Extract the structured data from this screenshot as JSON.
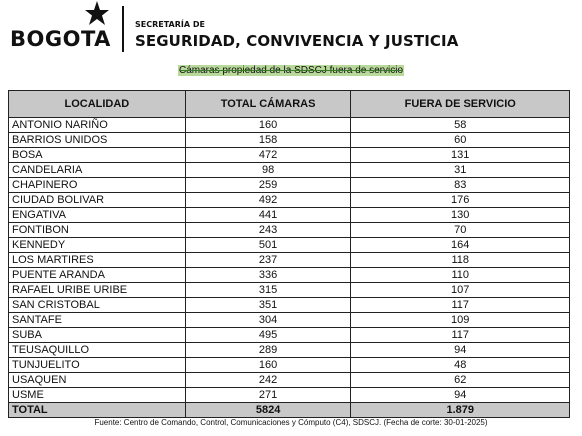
{
  "header": {
    "logo_text": "BOGOTA",
    "secretaria": "SECRETARÍA DE",
    "department": "SEGURIDAD, CONVIVENCIA Y JUSTICIA"
  },
  "subtitle": "Cámaras propiedad de la SDSCJ fuera de servicio",
  "table": {
    "headers": [
      "LOCALIDAD",
      "TOTAL CÁMARAS",
      "FUERA DE SERVICIO"
    ],
    "rows": [
      [
        "ANTONIO NARIÑO",
        "160",
        "58"
      ],
      [
        "BARRIOS UNIDOS",
        "158",
        "60"
      ],
      [
        "BOSA",
        "472",
        "131"
      ],
      [
        "CANDELARIA",
        "98",
        "31"
      ],
      [
        "CHAPINERO",
        "259",
        "83"
      ],
      [
        "CIUDAD BOLIVAR",
        "492",
        "176"
      ],
      [
        "ENGATIVA",
        "441",
        "130"
      ],
      [
        "FONTIBON",
        "243",
        "70"
      ],
      [
        "KENNEDY",
        "501",
        "164"
      ],
      [
        "LOS MARTIRES",
        "237",
        "118"
      ],
      [
        "PUENTE ARANDA",
        "336",
        "110"
      ],
      [
        "RAFAEL URIBE URIBE",
        "315",
        "107"
      ],
      [
        "SAN CRISTOBAL",
        "351",
        "117"
      ],
      [
        "SANTAFE",
        "304",
        "109"
      ],
      [
        "SUBA",
        "495",
        "117"
      ],
      [
        "TEUSAQUILLO",
        "289",
        "94"
      ],
      [
        "TUNJUELITO",
        "160",
        "48"
      ],
      [
        "USAQUEN",
        "242",
        "62"
      ],
      [
        "USME",
        "271",
        "94"
      ]
    ],
    "total": [
      "TOTAL",
      "5824",
      "1.879"
    ]
  },
  "source": "Fuente: Centro de Comando, Control, Comunicaciones y Cómputo (C4), SDSCJ. (Fecha de corte: 30-01-2025)"
}
